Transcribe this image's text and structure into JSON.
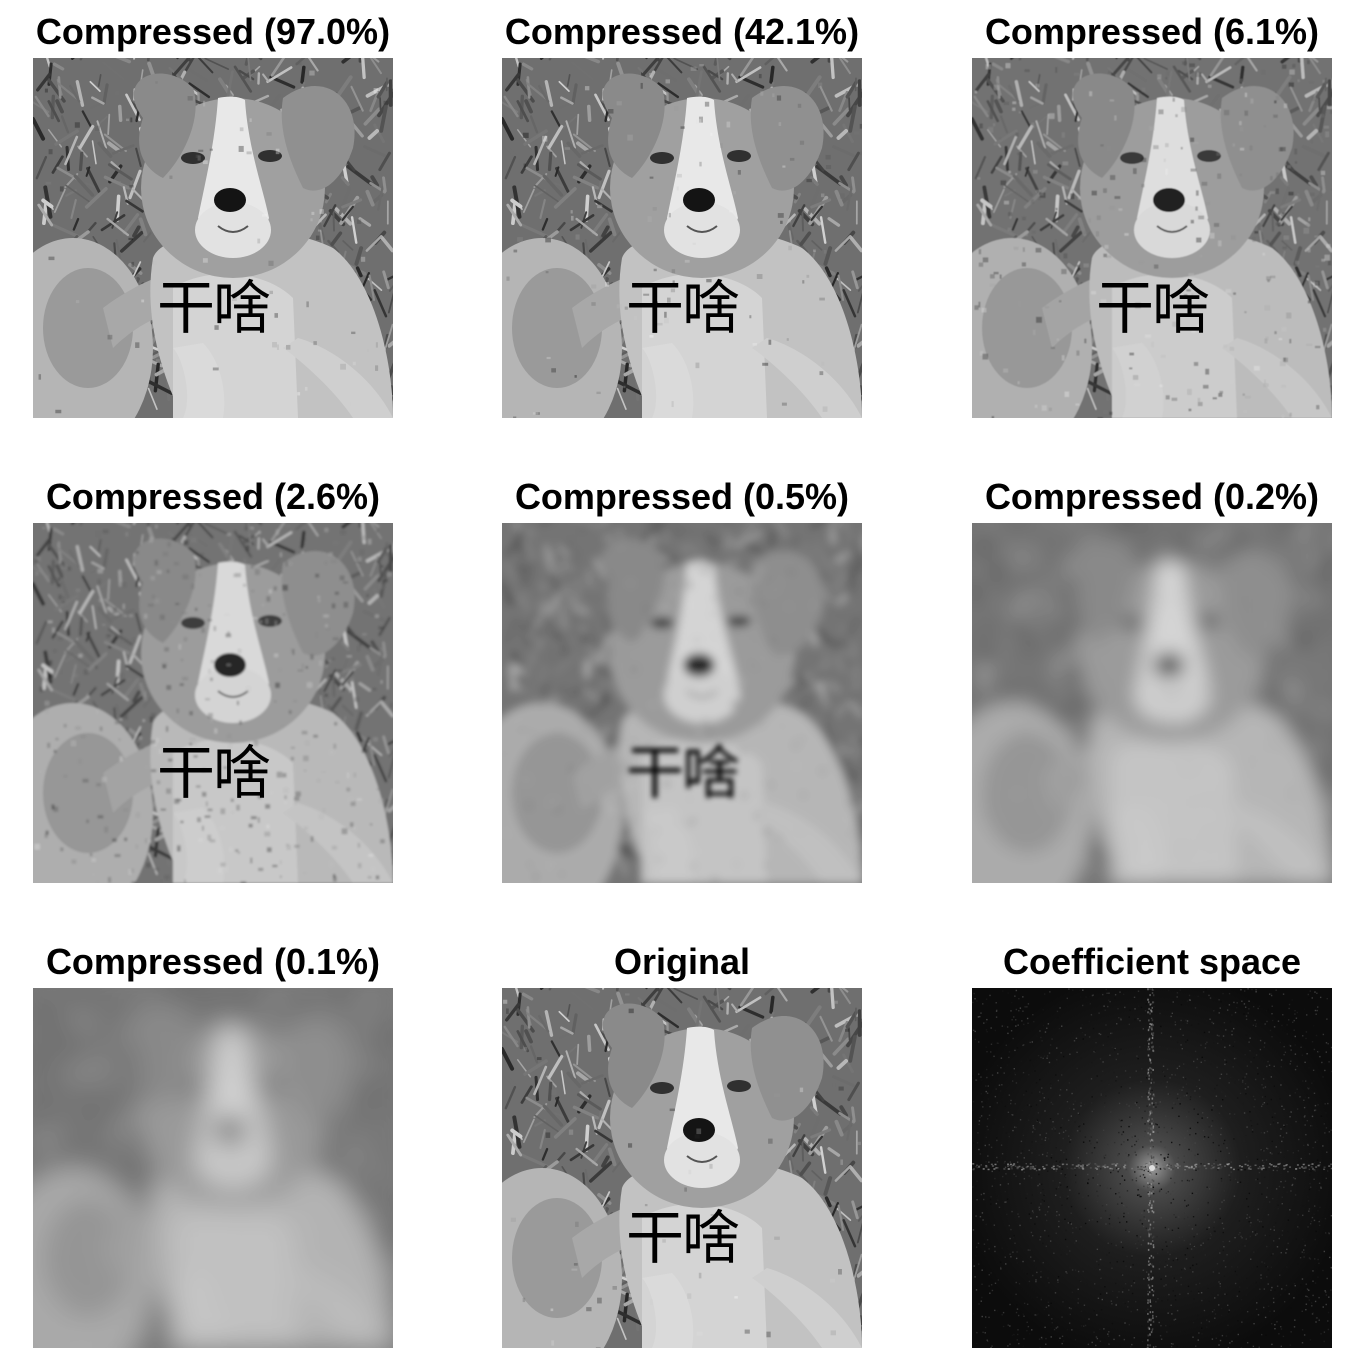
{
  "figure": {
    "panels": [
      {
        "title": "Compressed (97.0%)",
        "image_caption": "干啥",
        "blur": 0,
        "noise": 0.04,
        "contrast": 1.0,
        "dark": false
      },
      {
        "title": "Compressed (42.1%)",
        "image_caption": "干啥",
        "blur": 0,
        "noise": 0.06,
        "contrast": 1.0,
        "dark": false
      },
      {
        "title": "Compressed (6.1%)",
        "image_caption": "干啥",
        "blur": 0.4,
        "noise": 0.16,
        "contrast": 0.9,
        "dark": false
      },
      {
        "title": "Compressed (2.6%)",
        "image_caption": "干啥",
        "blur": 1.0,
        "noise": 0.22,
        "contrast": 0.85,
        "dark": false
      },
      {
        "title": "Compressed (0.5%)",
        "image_caption": "干啥",
        "blur": 4.5,
        "noise": 0.12,
        "contrast": 0.8,
        "dark": false
      },
      {
        "title": "Compressed (0.2%)",
        "image_caption": "",
        "blur": 9,
        "noise": 0.08,
        "contrast": 0.8,
        "dark": false
      },
      {
        "title": "Compressed (0.1%)",
        "image_caption": "",
        "blur": 13,
        "noise": 0.05,
        "contrast": 0.75,
        "dark": false
      },
      {
        "title": "Original",
        "image_caption": "干啥",
        "blur": 0,
        "noise": 0.03,
        "contrast": 1.0,
        "dark": false
      },
      {
        "title": "Coefficient space",
        "image_caption": "",
        "blur": 0,
        "noise": 0,
        "contrast": 1.0,
        "dark": true
      }
    ]
  }
}
